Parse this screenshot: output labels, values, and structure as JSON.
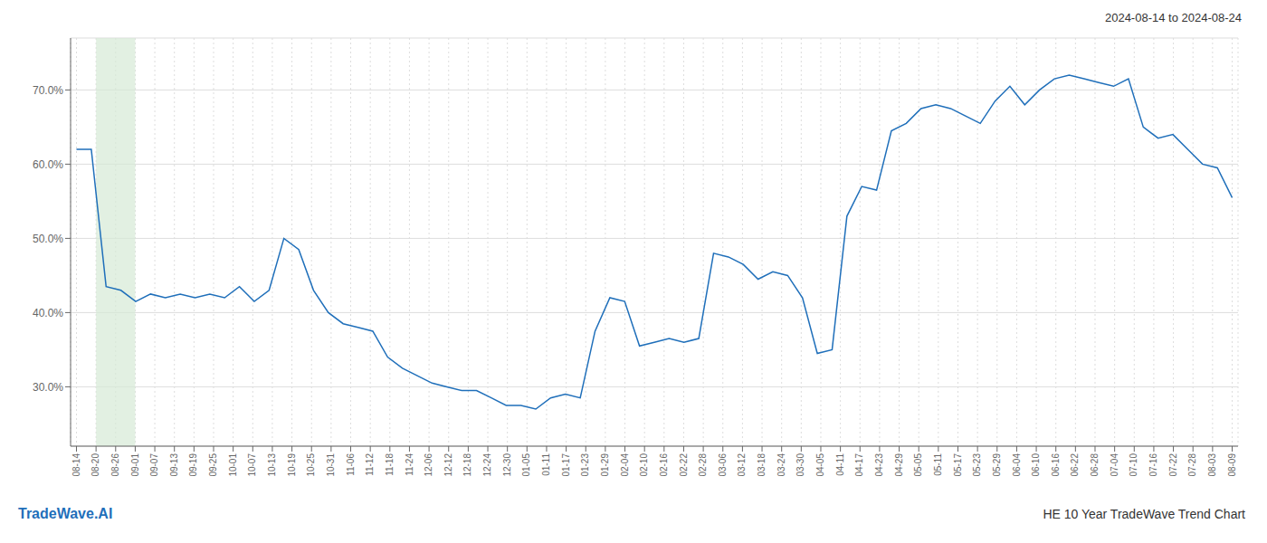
{
  "chart_data": {
    "type": "line",
    "title": "2024-08-14 to 2024-08-24",
    "annotations": [
      "TradeWave.AI",
      "HE 10 Year TradeWave Trend Chart"
    ],
    "color": "#1f6fba",
    "grid": true,
    "highlight": {
      "x": [
        1,
        3
      ],
      "color": "#d5ead5"
    },
    "xlim": [
      -0.3,
      59.3
    ],
    "xticks": [
      {
        "value": 0,
        "label": "08-14"
      },
      {
        "value": 1,
        "label": "08-20"
      },
      {
        "value": 2,
        "label": "08-26"
      },
      {
        "value": 3,
        "label": "09-01"
      },
      {
        "value": 4,
        "label": "09-07"
      },
      {
        "value": 5,
        "label": "09-13"
      },
      {
        "value": 6,
        "label": "09-19"
      },
      {
        "value": 7,
        "label": "09-25"
      },
      {
        "value": 8,
        "label": "10-01"
      },
      {
        "value": 9,
        "label": "10-07"
      },
      {
        "value": 10,
        "label": "10-13"
      },
      {
        "value": 11,
        "label": "10-19"
      },
      {
        "value": 12,
        "label": "10-25"
      },
      {
        "value": 13,
        "label": "10-31"
      },
      {
        "value": 14,
        "label": "11-06"
      },
      {
        "value": 15,
        "label": "11-12"
      },
      {
        "value": 16,
        "label": "11-18"
      },
      {
        "value": 17,
        "label": "11-24"
      },
      {
        "value": 18,
        "label": "12-06"
      },
      {
        "value": 19,
        "label": "12-12"
      },
      {
        "value": 20,
        "label": "12-18"
      },
      {
        "value": 21,
        "label": "12-24"
      },
      {
        "value": 22,
        "label": "12-30"
      },
      {
        "value": 23,
        "label": "01-05"
      },
      {
        "value": 24,
        "label": "01-11"
      },
      {
        "value": 25,
        "label": "01-17"
      },
      {
        "value": 26,
        "label": "01-23"
      },
      {
        "value": 27,
        "label": "01-29"
      },
      {
        "value": 28,
        "label": "02-04"
      },
      {
        "value": 29,
        "label": "02-10"
      },
      {
        "value": 30,
        "label": "02-16"
      },
      {
        "value": 31,
        "label": "02-22"
      },
      {
        "value": 32,
        "label": "02-28"
      },
      {
        "value": 33,
        "label": "03-06"
      },
      {
        "value": 34,
        "label": "03-12"
      },
      {
        "value": 35,
        "label": "03-18"
      },
      {
        "value": 36,
        "label": "03-24"
      },
      {
        "value": 37,
        "label": "03-30"
      },
      {
        "value": 38,
        "label": "04-05"
      },
      {
        "value": 39,
        "label": "04-11"
      },
      {
        "value": 40,
        "label": "04-17"
      },
      {
        "value": 41,
        "label": "04-23"
      },
      {
        "value": 42,
        "label": "04-29"
      },
      {
        "value": 43,
        "label": "05-05"
      },
      {
        "value": 44,
        "label": "05-11"
      },
      {
        "value": 45,
        "label": "05-17"
      },
      {
        "value": 46,
        "label": "05-23"
      },
      {
        "value": 47,
        "label": "05-29"
      },
      {
        "value": 48,
        "label": "06-04"
      },
      {
        "value": 49,
        "label": "06-10"
      },
      {
        "value": 50,
        "label": "06-16"
      },
      {
        "value": 51,
        "label": "06-22"
      },
      {
        "value": 52,
        "label": "06-28"
      },
      {
        "value": 53,
        "label": "07-04"
      },
      {
        "value": 54,
        "label": "07-10"
      },
      {
        "value": 55,
        "label": "07-16"
      },
      {
        "value": 56,
        "label": "07-22"
      },
      {
        "value": 57,
        "label": "07-28"
      },
      {
        "value": 58,
        "label": "08-03"
      },
      {
        "value": 59,
        "label": "08-09"
      }
    ],
    "ylim": [
      22,
      77
    ],
    "yticks": [
      {
        "value": 30,
        "label": "30.0%"
      },
      {
        "value": 40,
        "label": "40.0%"
      },
      {
        "value": 50,
        "label": "50.0%"
      },
      {
        "value": 60,
        "label": "60.0%"
      },
      {
        "value": 70,
        "label": "70.0%"
      }
    ],
    "x": [
      0,
      0.7564,
      1.5128,
      2.2692,
      3.0256,
      3.7821,
      4.5385,
      5.2949,
      6.0513,
      6.8077,
      7.5641,
      8.3205,
      9.0769,
      9.8333,
      10.5897,
      11.3462,
      12.1026,
      12.859,
      13.6154,
      14.3718,
      15.1282,
      15.8846,
      16.641,
      17.3974,
      18.1538,
      18.9103,
      19.6667,
      20.4231,
      21.1795,
      21.9359,
      22.6923,
      23.4487,
      24.2051,
      24.9615,
      25.7179,
      26.4744,
      27.2308,
      27.9872,
      28.7436,
      29.5,
      30.2564,
      31.0128,
      31.7692,
      32.5256,
      33.2821,
      34.0385,
      34.7949,
      35.5513,
      36.3077,
      37.0641,
      37.8205,
      38.5769,
      39.3333,
      40.0897,
      40.8462,
      41.6026,
      42.359,
      43.1154,
      43.8718,
      44.6282,
      45.3846,
      46.141,
      46.8974,
      47.6538,
      48.4103,
      49.1667,
      49.9231,
      50.6795,
      51.4359,
      52.1923,
      52.9487,
      53.7051,
      54.4615,
      55.2179,
      55.9744,
      56.7308,
      57.4872,
      58.2436,
      59
    ],
    "values": [
      62.0,
      62.0,
      43.5,
      43.0,
      41.5,
      42.5,
      42.0,
      42.5,
      42.0,
      42.5,
      42.0,
      43.5,
      41.5,
      43.0,
      50.0,
      48.5,
      43.0,
      40.0,
      38.5,
      38.0,
      37.5,
      34.0,
      32.5,
      31.5,
      30.5,
      30.0,
      29.5,
      29.5,
      28.5,
      27.5,
      27.5,
      27.0,
      28.5,
      29.0,
      28.5,
      37.5,
      42.0,
      41.5,
      35.5,
      36.0,
      36.5,
      36.0,
      36.5,
      48.0,
      47.5,
      46.5,
      44.5,
      45.5,
      45.0,
      42.0,
      34.5,
      35.0,
      53.0,
      57.0,
      56.5,
      64.5,
      65.5,
      67.5,
      68.0,
      67.5,
      66.5,
      65.5,
      68.5,
      70.5,
      68.0,
      70.0,
      71.5,
      72.0,
      71.5,
      71.0,
      70.5,
      71.5,
      65.0,
      63.5,
      64.0,
      62.0,
      60.0,
      59.5,
      55.5
    ]
  }
}
